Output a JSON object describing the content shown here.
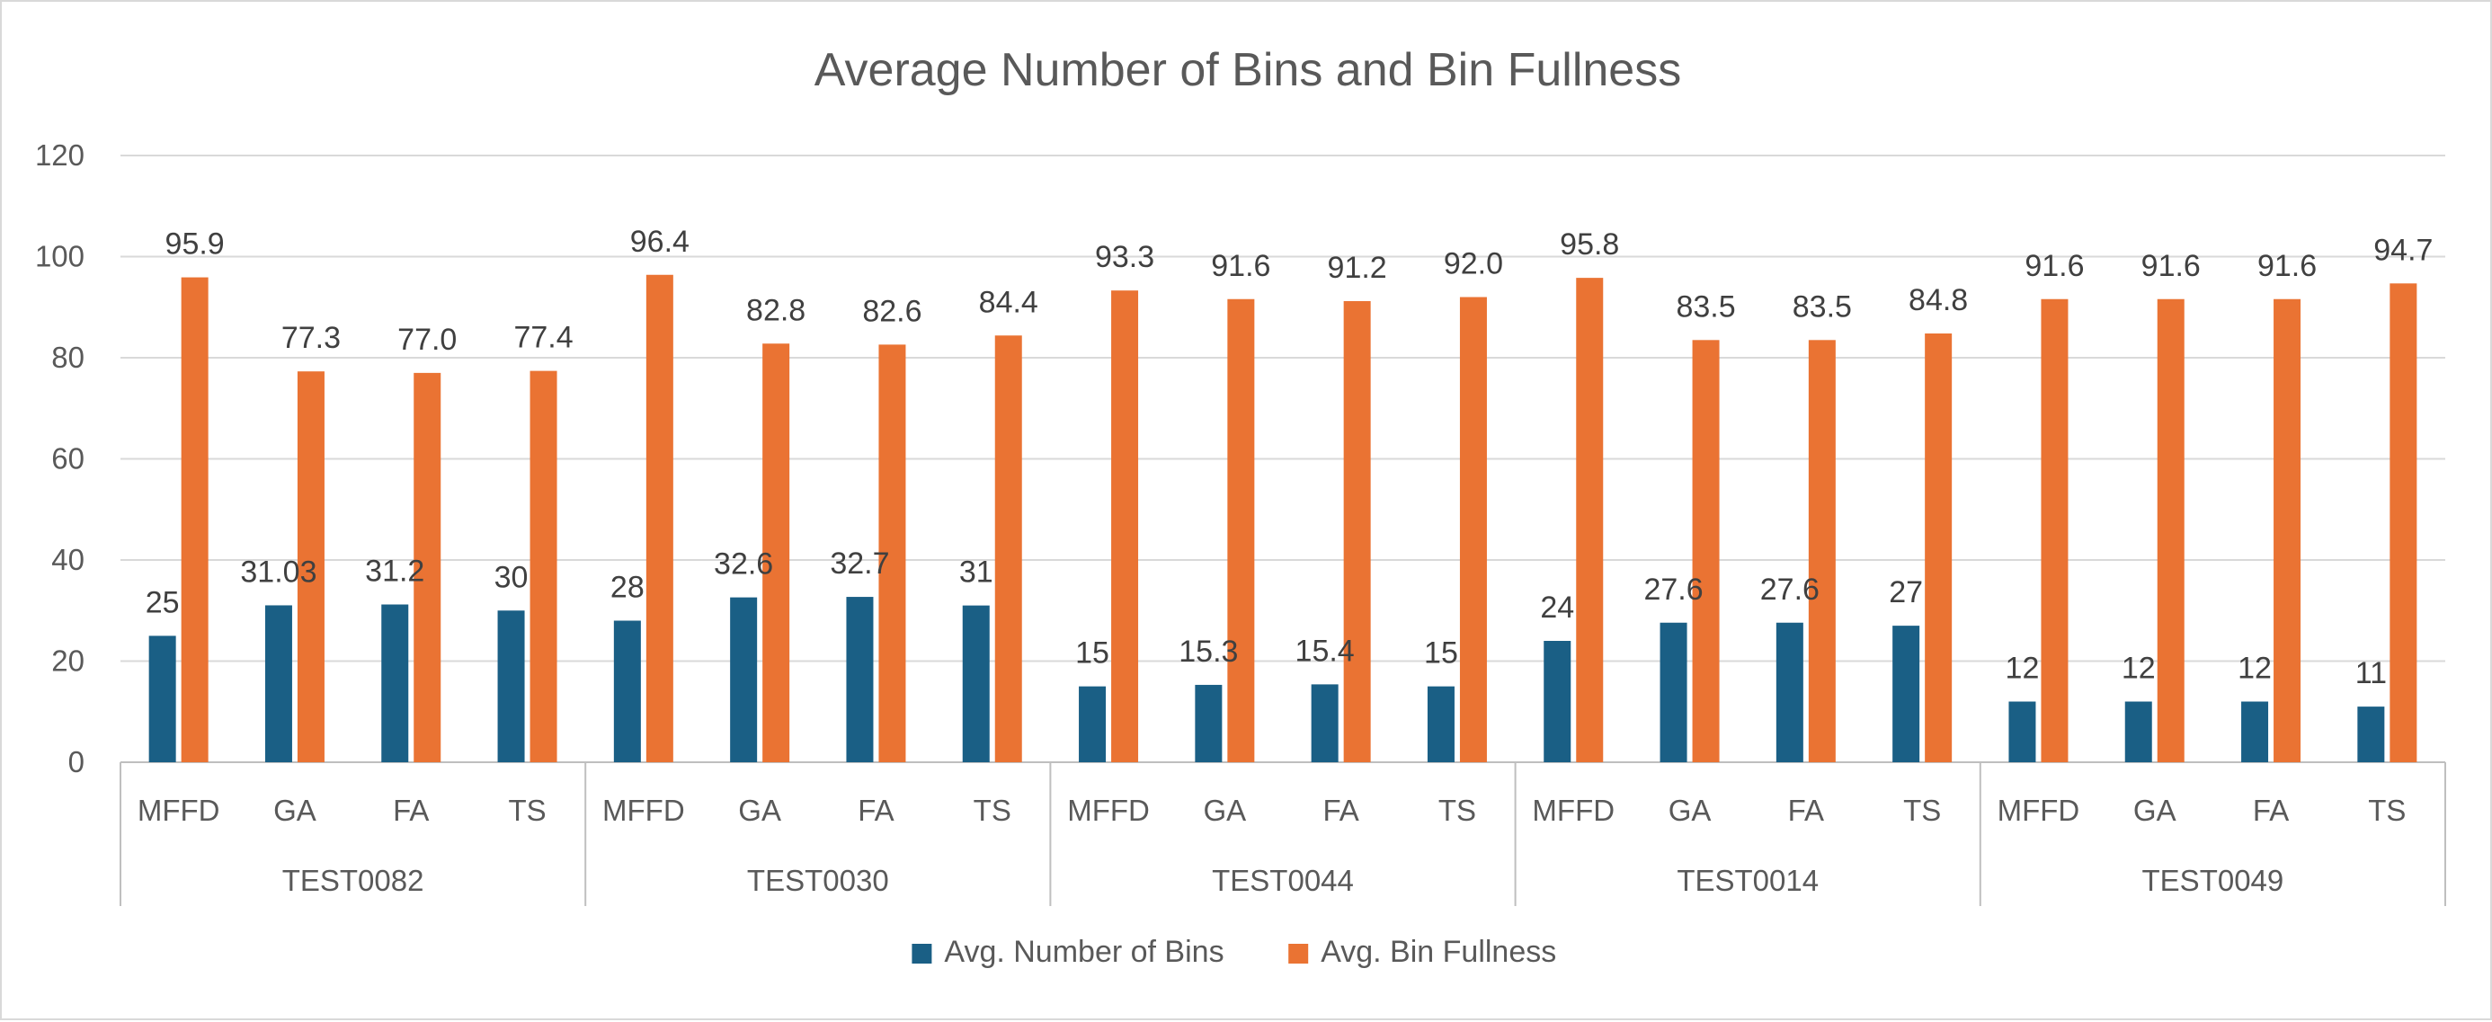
{
  "chart_data": {
    "type": "bar",
    "title": "Average Number of Bins and Bin Fullness",
    "xlabel": "",
    "ylabel": "",
    "ylim": [
      0,
      120
    ],
    "yticks": [
      0,
      20,
      40,
      60,
      80,
      100,
      120
    ],
    "grid": true,
    "legend_position": "bottom",
    "groups": [
      {
        "name": "TEST0082",
        "categories": [
          "MFFD",
          "GA",
          "FA",
          "TS"
        ]
      },
      {
        "name": "TEST0030",
        "categories": [
          "MFFD",
          "GA",
          "FA",
          "TS"
        ]
      },
      {
        "name": "TEST0044",
        "categories": [
          "MFFD",
          "GA",
          "FA",
          "TS"
        ]
      },
      {
        "name": "TEST0014",
        "categories": [
          "MFFD",
          "GA",
          "FA",
          "TS"
        ]
      },
      {
        "name": "TEST0049",
        "categories": [
          "MFFD",
          "GA",
          "FA",
          "TS"
        ]
      }
    ],
    "series": [
      {
        "name": "Avg. Number of Bins",
        "color": "#1a5f85",
        "values": [
          25,
          31.03,
          31.2,
          30,
          28,
          32.6,
          32.7,
          31,
          15,
          15.3,
          15.4,
          15,
          24,
          27.6,
          27.6,
          27,
          12,
          12,
          12,
          11
        ],
        "labels": [
          "25",
          "31.03",
          "31.2",
          "30",
          "28",
          "32.6",
          "32.7",
          "31",
          "15",
          "15.3",
          "15.4",
          "15",
          "24",
          "27.6",
          "27.6",
          "27",
          "12",
          "12",
          "12",
          "11"
        ]
      },
      {
        "name": "Avg. Bin Fullness",
        "color": "#ea7333",
        "values": [
          95.9,
          77.3,
          77.0,
          77.4,
          96.4,
          82.8,
          82.6,
          84.4,
          93.3,
          91.6,
          91.2,
          92.0,
          95.8,
          83.5,
          83.5,
          84.8,
          91.6,
          91.6,
          91.6,
          94.7
        ],
        "labels": [
          "95.9",
          "77.3",
          "77.0",
          "77.4",
          "96.4",
          "82.8",
          "82.6",
          "84.4",
          "93.3",
          "91.6",
          "91.2",
          "92.0",
          "95.8",
          "83.5",
          "83.5",
          "84.8",
          "91.6",
          "91.6",
          "91.6",
          "94.7"
        ]
      }
    ]
  }
}
